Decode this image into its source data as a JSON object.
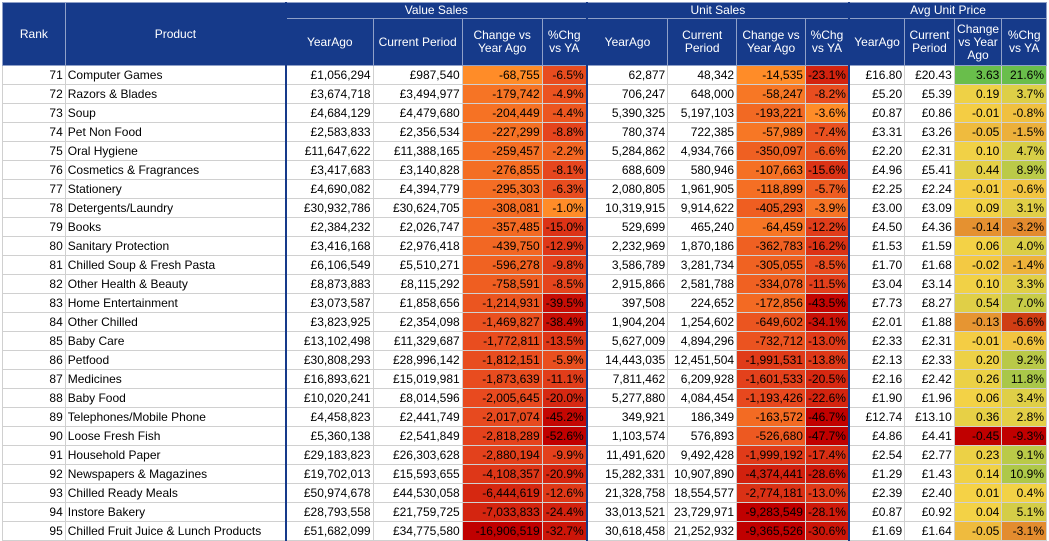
{
  "headers": {
    "rank": "Rank",
    "product": "Product",
    "value_sales": "Value Sales",
    "unit_sales": "Unit Sales",
    "avg_unit_price": "Avg Unit Price",
    "sub": [
      "YearAgo",
      "Current Period",
      "Change vs Year Ago",
      "%Chg vs YA",
      "YearAgo",
      "Current Period",
      "Change vs Year Ago",
      "%Chg vs YA",
      "YearAgo",
      "Current Period",
      "Change vs Year Ago",
      "%Chg vs YA"
    ]
  },
  "rows": [
    {
      "rank": "71",
      "product": "Computer Games",
      "v_ya": "£1,056,294",
      "v_cp": "£987,540",
      "v_chg": "-68,755",
      "v_pct": "-6.5%",
      "u_ya": "62,877",
      "u_cp": "48,342",
      "u_chg": "-14,535",
      "u_pct": "-23.1%",
      "p_ya": "£16.80",
      "p_cp": "£20.43",
      "p_chg": "3.63",
      "p_pct": "21.6%"
    },
    {
      "rank": "72",
      "product": "Razors & Blades",
      "v_ya": "£3,674,718",
      "v_cp": "£3,494,977",
      "v_chg": "-179,742",
      "v_pct": "-4.9%",
      "u_ya": "706,247",
      "u_cp": "648,000",
      "u_chg": "-58,247",
      "u_pct": "-8.2%",
      "p_ya": "£5.20",
      "p_cp": "£5.39",
      "p_chg": "0.19",
      "p_pct": "3.7%"
    },
    {
      "rank": "73",
      "product": "Soup",
      "v_ya": "£4,684,129",
      "v_cp": "£4,479,680",
      "v_chg": "-204,449",
      "v_pct": "-4.4%",
      "u_ya": "5,390,325",
      "u_cp": "5,197,103",
      "u_chg": "-193,221",
      "u_pct": "-3.6%",
      "p_ya": "£0.87",
      "p_cp": "£0.86",
      "p_chg": "-0.01",
      "p_pct": "-0.8%"
    },
    {
      "rank": "74",
      "product": "Pet Non Food",
      "v_ya": "£2,583,833",
      "v_cp": "£2,356,534",
      "v_chg": "-227,299",
      "v_pct": "-8.8%",
      "u_ya": "780,374",
      "u_cp": "722,385",
      "u_chg": "-57,989",
      "u_pct": "-7.4%",
      "p_ya": "£3.31",
      "p_cp": "£3.26",
      "p_chg": "-0.05",
      "p_pct": "-1.5%"
    },
    {
      "rank": "75",
      "product": "Oral Hygiene",
      "v_ya": "£11,647,622",
      "v_cp": "£11,388,165",
      "v_chg": "-259,457",
      "v_pct": "-2.2%",
      "u_ya": "5,284,862",
      "u_cp": "4,934,766",
      "u_chg": "-350,097",
      "u_pct": "-6.6%",
      "p_ya": "£2.20",
      "p_cp": "£2.31",
      "p_chg": "0.10",
      "p_pct": "4.7%"
    },
    {
      "rank": "76",
      "product": "Cosmetics & Fragrances",
      "v_ya": "£3,417,683",
      "v_cp": "£3,140,828",
      "v_chg": "-276,855",
      "v_pct": "-8.1%",
      "u_ya": "688,609",
      "u_cp": "580,946",
      "u_chg": "-107,663",
      "u_pct": "-15.6%",
      "p_ya": "£4.96",
      "p_cp": "£5.41",
      "p_chg": "0.44",
      "p_pct": "8.9%"
    },
    {
      "rank": "77",
      "product": "Stationery",
      "v_ya": "£4,690,082",
      "v_cp": "£4,394,779",
      "v_chg": "-295,303",
      "v_pct": "-6.3%",
      "u_ya": "2,080,805",
      "u_cp": "1,961,905",
      "u_chg": "-118,899",
      "u_pct": "-5.7%",
      "p_ya": "£2.25",
      "p_cp": "£2.24",
      "p_chg": "-0.01",
      "p_pct": "-0.6%"
    },
    {
      "rank": "78",
      "product": "Detergents/Laundry",
      "v_ya": "£30,932,786",
      "v_cp": "£30,624,705",
      "v_chg": "-308,081",
      "v_pct": "-1.0%",
      "u_ya": "10,319,915",
      "u_cp": "9,914,622",
      "u_chg": "-405,293",
      "u_pct": "-3.9%",
      "p_ya": "£3.00",
      "p_cp": "£3.09",
      "p_chg": "0.09",
      "p_pct": "3.1%"
    },
    {
      "rank": "79",
      "product": "Books",
      "v_ya": "£2,384,232",
      "v_cp": "£2,026,747",
      "v_chg": "-357,485",
      "v_pct": "-15.0%",
      "u_ya": "529,699",
      "u_cp": "465,240",
      "u_chg": "-64,459",
      "u_pct": "-12.2%",
      "p_ya": "£4.50",
      "p_cp": "£4.36",
      "p_chg": "-0.14",
      "p_pct": "-3.2%"
    },
    {
      "rank": "80",
      "product": "Sanitary Protection",
      "v_ya": "£3,416,168",
      "v_cp": "£2,976,418",
      "v_chg": "-439,750",
      "v_pct": "-12.9%",
      "u_ya": "2,232,969",
      "u_cp": "1,870,186",
      "u_chg": "-362,783",
      "u_pct": "-16.2%",
      "p_ya": "£1.53",
      "p_cp": "£1.59",
      "p_chg": "0.06",
      "p_pct": "4.0%"
    },
    {
      "rank": "81",
      "product": "Chilled Soup & Fresh Pasta",
      "v_ya": "£6,106,549",
      "v_cp": "£5,510,271",
      "v_chg": "-596,278",
      "v_pct": "-9.8%",
      "u_ya": "3,586,789",
      "u_cp": "3,281,734",
      "u_chg": "-305,055",
      "u_pct": "-8.5%",
      "p_ya": "£1.70",
      "p_cp": "£1.68",
      "p_chg": "-0.02",
      "p_pct": "-1.4%"
    },
    {
      "rank": "82",
      "product": "Other Health & Beauty",
      "v_ya": "£8,873,883",
      "v_cp": "£8,115,292",
      "v_chg": "-758,591",
      "v_pct": "-8.5%",
      "u_ya": "2,915,866",
      "u_cp": "2,581,788",
      "u_chg": "-334,078",
      "u_pct": "-11.5%",
      "p_ya": "£3.04",
      "p_cp": "£3.14",
      "p_chg": "0.10",
      "p_pct": "3.3%"
    },
    {
      "rank": "83",
      "product": "Home Entertainment",
      "v_ya": "£3,073,587",
      "v_cp": "£1,858,656",
      "v_chg": "-1,214,931",
      "v_pct": "-39.5%",
      "u_ya": "397,508",
      "u_cp": "224,652",
      "u_chg": "-172,856",
      "u_pct": "-43.5%",
      "p_ya": "£7.73",
      "p_cp": "£8.27",
      "p_chg": "0.54",
      "p_pct": "7.0%"
    },
    {
      "rank": "84",
      "product": "Other Chilled",
      "v_ya": "£3,823,925",
      "v_cp": "£2,354,098",
      "v_chg": "-1,469,827",
      "v_pct": "-38.4%",
      "u_ya": "1,904,204",
      "u_cp": "1,254,602",
      "u_chg": "-649,602",
      "u_pct": "-34.1%",
      "p_ya": "£2.01",
      "p_cp": "£1.88",
      "p_chg": "-0.13",
      "p_pct": "-6.6%"
    },
    {
      "rank": "85",
      "product": "Baby Care",
      "v_ya": "£13,102,498",
      "v_cp": "£11,329,687",
      "v_chg": "-1,772,811",
      "v_pct": "-13.5%",
      "u_ya": "5,627,009",
      "u_cp": "4,894,296",
      "u_chg": "-732,712",
      "u_pct": "-13.0%",
      "p_ya": "£2.33",
      "p_cp": "£2.31",
      "p_chg": "-0.01",
      "p_pct": "-0.6%"
    },
    {
      "rank": "86",
      "product": "Petfood",
      "v_ya": "£30,808,293",
      "v_cp": "£28,996,142",
      "v_chg": "-1,812,151",
      "v_pct": "-5.9%",
      "u_ya": "14,443,035",
      "u_cp": "12,451,504",
      "u_chg": "-1,991,531",
      "u_pct": "-13.8%",
      "p_ya": "£2.13",
      "p_cp": "£2.33",
      "p_chg": "0.20",
      "p_pct": "9.2%"
    },
    {
      "rank": "87",
      "product": "Medicines",
      "v_ya": "£16,893,621",
      "v_cp": "£15,019,981",
      "v_chg": "-1,873,639",
      "v_pct": "-11.1%",
      "u_ya": "7,811,462",
      "u_cp": "6,209,928",
      "u_chg": "-1,601,533",
      "u_pct": "-20.5%",
      "p_ya": "£2.16",
      "p_cp": "£2.42",
      "p_chg": "0.26",
      "p_pct": "11.8%"
    },
    {
      "rank": "88",
      "product": "Baby Food",
      "v_ya": "£10,020,241",
      "v_cp": "£8,014,596",
      "v_chg": "-2,005,645",
      "v_pct": "-20.0%",
      "u_ya": "5,277,880",
      "u_cp": "4,084,454",
      "u_chg": "-1,193,426",
      "u_pct": "-22.6%",
      "p_ya": "£1.90",
      "p_cp": "£1.96",
      "p_chg": "0.06",
      "p_pct": "3.4%"
    },
    {
      "rank": "89",
      "product": "Telephones/Mobile Phone",
      "v_ya": "£4,458,823",
      "v_cp": "£2,441,749",
      "v_chg": "-2,017,074",
      "v_pct": "-45.2%",
      "u_ya": "349,921",
      "u_cp": "186,349",
      "u_chg": "-163,572",
      "u_pct": "-46.7%",
      "p_ya": "£12.74",
      "p_cp": "£13.10",
      "p_chg": "0.36",
      "p_pct": "2.8%"
    },
    {
      "rank": "90",
      "product": "Loose Fresh Fish",
      "v_ya": "£5,360,138",
      "v_cp": "£2,541,849",
      "v_chg": "-2,818,289",
      "v_pct": "-52.6%",
      "u_ya": "1,103,574",
      "u_cp": "576,893",
      "u_chg": "-526,680",
      "u_pct": "-47.7%",
      "p_ya": "£4.86",
      "p_cp": "£4.41",
      "p_chg": "-0.45",
      "p_pct": "-9.3%"
    },
    {
      "rank": "91",
      "product": "Household Paper",
      "v_ya": "£29,183,823",
      "v_cp": "£26,303,628",
      "v_chg": "-2,880,194",
      "v_pct": "-9.9%",
      "u_ya": "11,491,620",
      "u_cp": "9,492,428",
      "u_chg": "-1,999,192",
      "u_pct": "-17.4%",
      "p_ya": "£2.54",
      "p_cp": "£2.77",
      "p_chg": "0.23",
      "p_pct": "9.1%"
    },
    {
      "rank": "92",
      "product": "Newspapers & Magazines",
      "v_ya": "£19,702,013",
      "v_cp": "£15,593,655",
      "v_chg": "-4,108,357",
      "v_pct": "-20.9%",
      "u_ya": "15,282,331",
      "u_cp": "10,907,890",
      "u_chg": "-4,374,441",
      "u_pct": "-28.6%",
      "p_ya": "£1.29",
      "p_cp": "£1.43",
      "p_chg": "0.14",
      "p_pct": "10.9%"
    },
    {
      "rank": "93",
      "product": "Chilled Ready Meals",
      "v_ya": "£50,974,678",
      "v_cp": "£44,530,058",
      "v_chg": "-6,444,619",
      "v_pct": "-12.6%",
      "u_ya": "21,328,758",
      "u_cp": "18,554,577",
      "u_chg": "-2,774,181",
      "u_pct": "-13.0%",
      "p_ya": "£2.39",
      "p_cp": "£2.40",
      "p_chg": "0.01",
      "p_pct": "0.4%"
    },
    {
      "rank": "94",
      "product": "Instore Bakery",
      "v_ya": "£28,793,558",
      "v_cp": "£21,759,725",
      "v_chg": "-7,033,833",
      "v_pct": "-24.4%",
      "u_ya": "33,013,521",
      "u_cp": "23,729,971",
      "u_chg": "-9,283,549",
      "u_pct": "-28.1%",
      "p_ya": "£0.87",
      "p_cp": "£0.92",
      "p_chg": "0.04",
      "p_pct": "5.1%"
    },
    {
      "rank": "95",
      "product": "Chilled Fruit Juice & Lunch Products",
      "v_ya": "£51,682,099",
      "v_cp": "£34,775,580",
      "v_chg": "-16,906,519",
      "v_pct": "-32.7%",
      "u_ya": "30,618,458",
      "u_cp": "21,252,932",
      "u_chg": "-9,365,526",
      "u_pct": "-30.6%",
      "p_ya": "£1.69",
      "p_cp": "£1.64",
      "p_chg": "-0.05",
      "p_pct": "-3.1%"
    }
  ]
}
